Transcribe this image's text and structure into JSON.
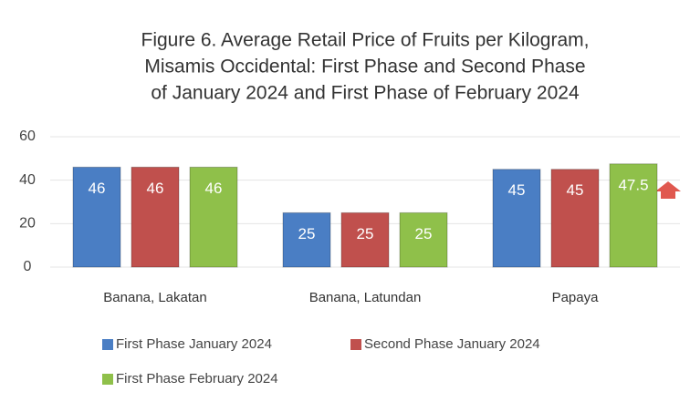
{
  "chart_data": {
    "type": "bar",
    "title": [
      "Figure 6. Average Retail Price of Fruits per Kilogram,",
      "Misamis Occidental: First Phase and Second Phase",
      "of January 2024 and First Phase of February 2024"
    ],
    "categories": [
      "Banana, Lakatan",
      "Banana, Latundan",
      "Papaya"
    ],
    "series": [
      {
        "name": "First Phase January 2024",
        "color": "#4a7ec4",
        "values": [
          46,
          25,
          45
        ]
      },
      {
        "name": "Second Phase January 2024",
        "color": "#c0504d",
        "values": [
          46,
          25,
          45
        ]
      },
      {
        "name": "First Phase February 2024",
        "color": "#8fc04a",
        "values": [
          46,
          25,
          47.5
        ]
      }
    ],
    "ylim": [
      0,
      60
    ],
    "yticks": [
      0,
      20,
      40,
      60
    ],
    "grid": true
  }
}
